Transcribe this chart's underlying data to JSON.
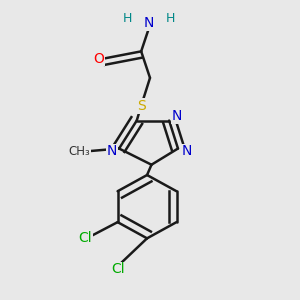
{
  "bg_color": "#e8e8e8",
  "bond_color": "#1a1a1a",
  "bond_width": 1.8,
  "dbo": 0.012,
  "colors": {
    "N": "#0000CC",
    "O": "#FF0000",
    "S": "#CCAA00",
    "C": "#1a1a1a",
    "Cl": "#00AA00",
    "H": "#008888"
  },
  "fs": 10
}
